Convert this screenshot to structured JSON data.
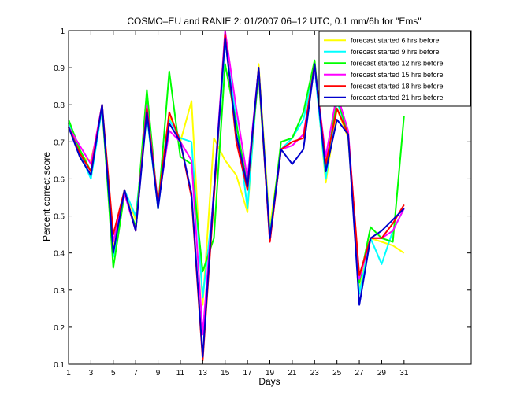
{
  "chart_data": {
    "type": "line",
    "title": "COSMO–EU and RANIE 2: 01/2007 06–12 UTC, 0.1 mm/6h for \"Ems\"",
    "xlabel": "Days",
    "ylabel": "Percent correct score",
    "xlim": [
      1,
      37
    ],
    "ylim": [
      0.1,
      1
    ],
    "xticks": [
      1,
      3,
      5,
      7,
      9,
      11,
      13,
      15,
      17,
      19,
      21,
      23,
      25,
      27,
      29,
      31
    ],
    "yticks": [
      0.1,
      0.2,
      0.3,
      0.4,
      0.5,
      0.6,
      0.7,
      0.8,
      0.9,
      1
    ],
    "ytick_labels": [
      "0.1",
      "0.2",
      "0.3",
      "0.4",
      "0.5",
      "0.6",
      "0.7",
      "0.8",
      "0.9",
      "1"
    ],
    "legend_position": "top-right",
    "grid": false,
    "x": [
      1,
      2,
      3,
      4,
      5,
      6,
      7,
      8,
      9,
      10,
      11,
      12,
      13,
      14,
      15,
      16,
      17,
      18,
      19,
      20,
      21,
      22,
      23,
      24,
      25,
      26,
      27,
      28,
      29,
      30,
      31
    ],
    "series": [
      {
        "name": "forecast started 6 hrs before",
        "color": "#ffff00",
        "values": [
          0.75,
          0.66,
          0.65,
          0.78,
          0.41,
          0.57,
          0.49,
          0.77,
          0.53,
          0.77,
          0.7,
          0.81,
          0.26,
          0.71,
          0.65,
          0.61,
          0.51,
          0.91,
          0.47,
          0.68,
          0.7,
          0.71,
          0.91,
          0.59,
          0.79,
          0.71,
          0.3,
          0.44,
          0.43,
          0.42,
          0.4
        ]
      },
      {
        "name": "forecast started 9 hrs before",
        "color": "#00ffff",
        "values": [
          0.75,
          0.67,
          0.6,
          0.79,
          0.39,
          0.57,
          0.5,
          0.77,
          0.52,
          0.76,
          0.71,
          0.7,
          0.28,
          0.55,
          0.97,
          0.76,
          0.52,
          0.9,
          0.45,
          0.68,
          0.71,
          0.76,
          0.9,
          0.6,
          0.81,
          0.72,
          0.29,
          0.44,
          0.37,
          0.46,
          0.52
        ]
      },
      {
        "name": "forecast started 12 hrs before",
        "color": "#00ff00",
        "values": [
          0.76,
          0.68,
          0.62,
          0.8,
          0.36,
          0.56,
          0.47,
          0.84,
          0.52,
          0.89,
          0.66,
          0.64,
          0.35,
          0.44,
          0.91,
          0.75,
          0.58,
          0.88,
          0.44,
          0.7,
          0.71,
          0.78,
          0.92,
          0.62,
          0.82,
          0.72,
          0.32,
          0.47,
          0.44,
          0.43,
          0.77
        ]
      },
      {
        "name": "forecast started 15 hrs before",
        "color": "#ff00ff",
        "values": [
          0.74,
          0.69,
          0.64,
          0.8,
          0.43,
          0.56,
          0.46,
          0.8,
          0.53,
          0.73,
          0.7,
          0.65,
          0.18,
          0.57,
          1.0,
          0.79,
          0.6,
          0.9,
          0.43,
          0.68,
          0.69,
          0.72,
          0.9,
          0.66,
          0.83,
          0.73,
          0.33,
          0.44,
          0.44,
          0.46,
          0.52
        ]
      },
      {
        "name": "forecast started 18 hrs before",
        "color": "#ff0000",
        "values": [
          0.74,
          0.67,
          0.62,
          0.8,
          0.45,
          0.57,
          0.46,
          0.79,
          0.53,
          0.78,
          0.7,
          0.55,
          0.11,
          0.55,
          0.99,
          0.7,
          0.57,
          0.9,
          0.43,
          0.68,
          0.7,
          0.71,
          0.91,
          0.64,
          0.79,
          0.72,
          0.34,
          0.44,
          0.44,
          0.48,
          0.53
        ]
      },
      {
        "name": "forecast started 21 hrs before",
        "color": "#0000cc",
        "values": [
          0.74,
          0.66,
          0.61,
          0.8,
          0.4,
          0.57,
          0.46,
          0.78,
          0.52,
          0.75,
          0.7,
          0.56,
          0.12,
          0.57,
          0.98,
          0.72,
          0.58,
          0.9,
          0.44,
          0.68,
          0.64,
          0.68,
          0.91,
          0.62,
          0.76,
          0.72,
          0.26,
          0.44,
          0.46,
          0.49,
          0.52
        ]
      }
    ]
  }
}
